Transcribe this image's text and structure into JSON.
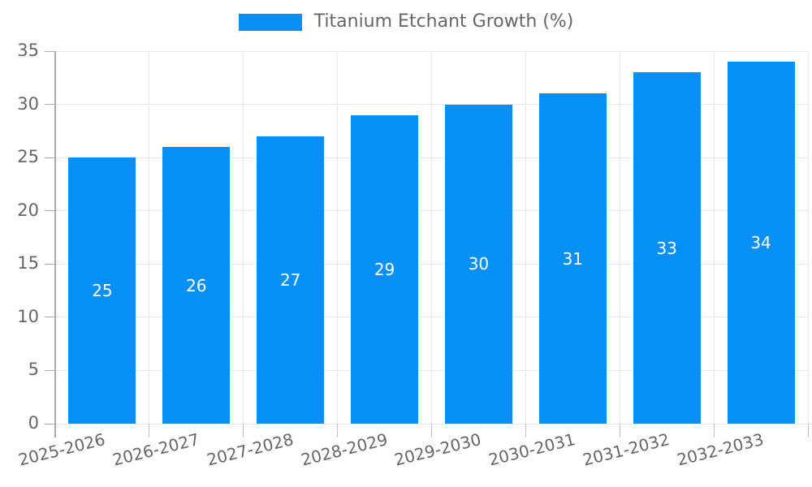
{
  "chart_data": {
    "type": "bar",
    "legend_label": "Titanium Etchant Growth (%)",
    "categories": [
      "2025-2026",
      "2026-2027",
      "2027-2028",
      "2028-2029",
      "2029-2030",
      "2030-2031",
      "2031-2032",
      "2032-2033"
    ],
    "values": [
      25,
      26,
      27,
      29,
      30,
      31,
      33,
      34
    ],
    "ylim": [
      0,
      35
    ],
    "yticks": [
      0,
      5,
      10,
      15,
      20,
      25,
      30,
      35
    ],
    "grid": true,
    "legend_position": "top",
    "value_label_position": "inside-center",
    "x_label_rotation_deg": -14,
    "colors": {
      "bar": "#0690f5",
      "text": "#666666",
      "value_label": "#ffffff",
      "grid": "#e7e7e7",
      "axis": "#aaaaaa",
      "tick": "#c2c2c2",
      "background": "#ffffff"
    }
  }
}
